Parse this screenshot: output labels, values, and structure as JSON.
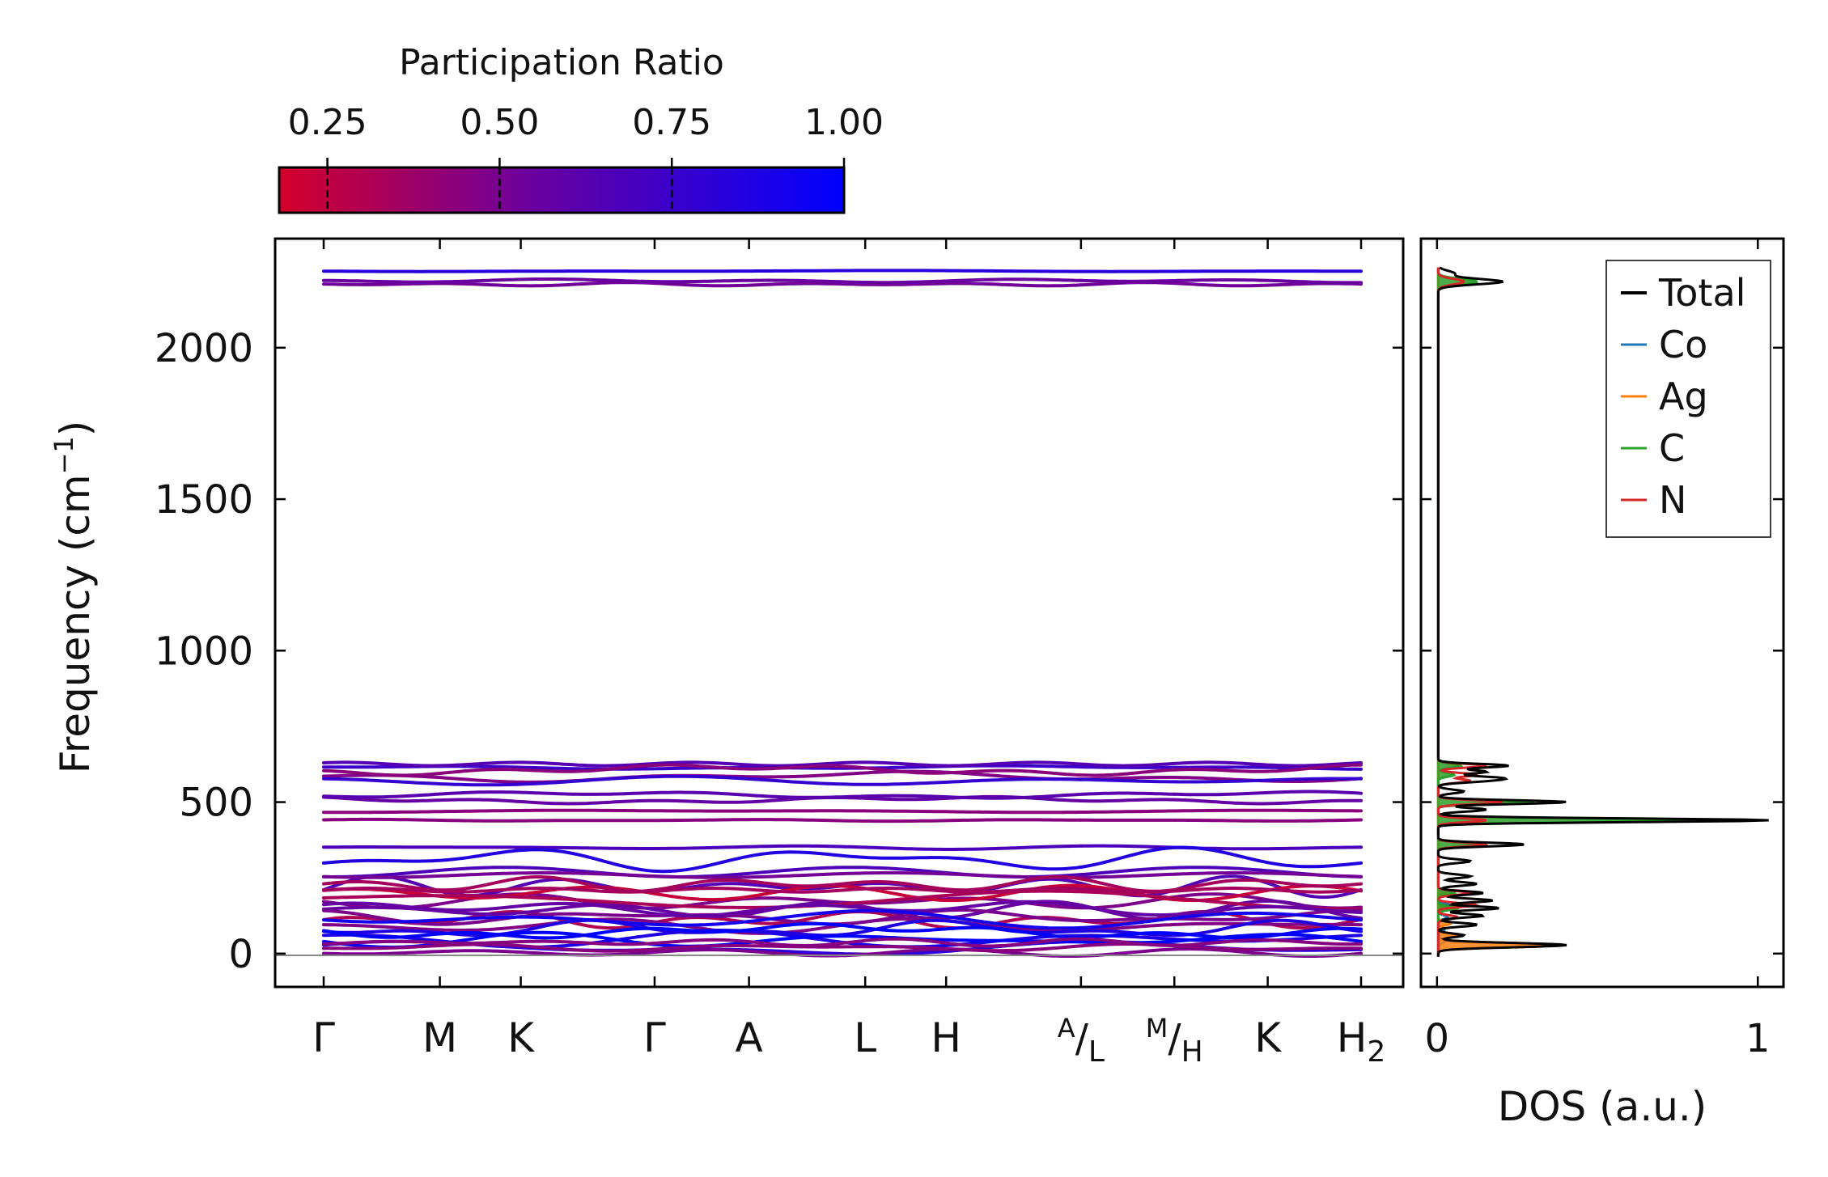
{
  "chart_data": [
    {
      "type": "line",
      "name": "phonon band structure",
      "ylabel": "Frequency (cm",
      "ylabel_sup": "−1",
      "ylabel_close": ")",
      "ylim": [
        -110,
        2360
      ],
      "yticks": [
        0,
        500,
        1000,
        1500,
        2000
      ],
      "x_segments": [
        {
          "label": "Γ",
          "pos": 0.0
        },
        {
          "label": "M",
          "pos": 0.112
        },
        {
          "label": "K",
          "pos": 0.19
        },
        {
          "label": "Γ",
          "pos": 0.319
        },
        {
          "label": "A",
          "pos": 0.41
        },
        {
          "label": "L",
          "pos": 0.522
        },
        {
          "label": "H",
          "pos": 0.6
        },
        {
          "label": "A",
          "label_sub": "L",
          "pos": 0.73
        },
        {
          "label": "M",
          "label_sub": "H",
          "pos": 0.82
        },
        {
          "label": "K",
          "pos": 0.91
        },
        {
          "label": "H",
          "label_sub": "2",
          "pos": 1.0
        }
      ],
      "breaks_at": [
        0.73,
        0.82
      ],
      "band_groups": [
        {
          "base": 2253,
          "amp": 2,
          "pr": 0.85,
          "count": 1
        },
        {
          "base": 2215,
          "amp": 6,
          "pr": 0.55,
          "count": 2
        },
        {
          "base": 620,
          "amp": 6,
          "pr": 0.75,
          "count": 2
        },
        {
          "base": 595,
          "amp": 18,
          "pr": 0.45,
          "count": 2
        },
        {
          "base": 570,
          "amp": 15,
          "pr": 0.7,
          "count": 1
        },
        {
          "base": 515,
          "amp": 12,
          "pr": 0.65,
          "count": 2
        },
        {
          "base": 470,
          "amp": 4,
          "pr": 0.45,
          "count": 1
        },
        {
          "base": 440,
          "amp": 3,
          "pr": 0.4,
          "count": 1
        },
        {
          "base": 350,
          "amp": 6,
          "pr": 0.7,
          "count": 1
        },
        {
          "base": 290,
          "amp": 40,
          "pr": 0.75,
          "count": 2
        },
        {
          "base": 240,
          "amp": 35,
          "pr": 0.6,
          "count": 2
        },
        {
          "base": 200,
          "amp": 25,
          "pr": 0.35,
          "count": 3
        },
        {
          "base": 160,
          "amp": 30,
          "pr": 0.45,
          "count": 4
        },
        {
          "base": 120,
          "amp": 25,
          "pr": 0.6,
          "count": 3
        },
        {
          "base": 80,
          "amp": 30,
          "pr": 0.8,
          "count": 3
        },
        {
          "base": 45,
          "amp": 25,
          "pr": 0.95,
          "count": 3
        },
        {
          "base": 20,
          "amp": 12,
          "pr": 0.35,
          "count": 3
        }
      ]
    },
    {
      "type": "line",
      "name": "density of states",
      "xlabel": "DOS (a.u.)",
      "xlim": [
        -0.05,
        1.08
      ],
      "xticks": [
        0,
        1
      ],
      "ylim": [
        -110,
        2360
      ],
      "series": [
        {
          "name": "Total",
          "color": "#000000",
          "peaks": [
            [
              2218,
              0.2
            ],
            [
              2245,
              0.05
            ],
            [
              620,
              0.22
            ],
            [
              600,
              0.15
            ],
            [
              580,
              0.17
            ],
            [
              570,
              0.12
            ],
            [
              535,
              0.08
            ],
            [
              500,
              0.4
            ],
            [
              475,
              0.15
            ],
            [
              440,
              1.03
            ],
            [
              360,
              0.27
            ],
            [
              305,
              0.1
            ],
            [
              255,
              0.1
            ],
            [
              230,
              0.12
            ],
            [
              200,
              0.14
            ],
            [
              175,
              0.17
            ],
            [
              150,
              0.19
            ],
            [
              125,
              0.14
            ],
            [
              95,
              0.12
            ],
            [
              60,
              0.08
            ],
            [
              28,
              0.4
            ]
          ]
        },
        {
          "name": "Co",
          "color": "#1f77b4",
          "peaks": [
            [
              200,
              0.03
            ],
            [
              160,
              0.035
            ],
            [
              120,
              0.03
            ],
            [
              80,
              0.02
            ],
            [
              40,
              0.02
            ]
          ]
        },
        {
          "name": "Ag",
          "color": "#ff7f0e",
          "peaks": [
            [
              28,
              0.38
            ],
            [
              60,
              0.06
            ],
            [
              100,
              0.04
            ],
            [
              150,
              0.04
            ],
            [
              200,
              0.03
            ]
          ]
        },
        {
          "name": "C",
          "color": "#2ca02c",
          "peaks": [
            [
              2218,
              0.12
            ],
            [
              620,
              0.07
            ],
            [
              500,
              0.3
            ],
            [
              440,
              0.85
            ],
            [
              360,
              0.12
            ],
            [
              590,
              0.05
            ],
            [
              200,
              0.05
            ],
            [
              150,
              0.06
            ]
          ]
        },
        {
          "name": "N",
          "color": "#d62728",
          "peaks": [
            [
              2218,
              0.08
            ],
            [
              620,
              0.15
            ],
            [
              590,
              0.12
            ],
            [
              570,
              0.1
            ],
            [
              500,
              0.2
            ],
            [
              440,
              0.15
            ],
            [
              360,
              0.15
            ],
            [
              200,
              0.1
            ],
            [
              160,
              0.12
            ],
            [
              120,
              0.06
            ]
          ]
        }
      ],
      "legend_position": "top-right"
    }
  ],
  "colorbar": {
    "title": "Participation Ratio",
    "min": 0.18,
    "max": 1.0,
    "ticks": [
      0.25,
      0.5,
      0.75,
      1.0
    ],
    "tick_labels": [
      "0.25",
      "0.50",
      "0.75",
      "1.00"
    ],
    "color_low": "#d4002a",
    "color_mid": "#6a00a0",
    "color_high": "#0000ff"
  }
}
